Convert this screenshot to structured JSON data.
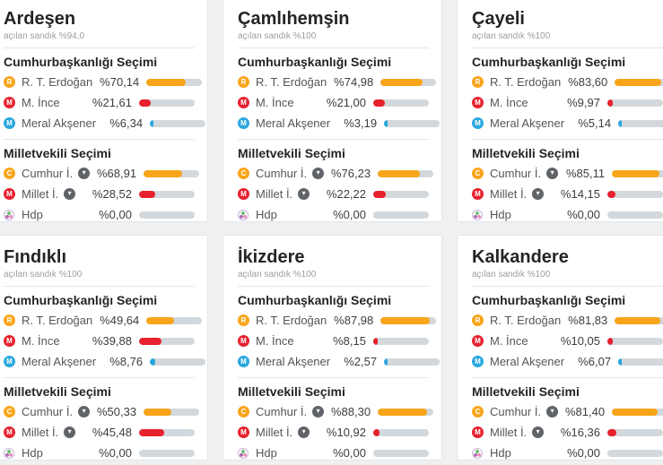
{
  "page": {
    "background": "#eef0f2"
  },
  "colors": {
    "orange": "#f9a51a",
    "red": "#e8212e",
    "blue": "#29a8df",
    "track": "#d2d8dc",
    "chevron_bg": "#606368"
  },
  "icons": {
    "chevron_down": "▾",
    "hdp": "hdp-tree-icon"
  },
  "labels": {
    "presidential": "Cumhurbaşkanlığı Seçimi",
    "parliamentary": "Milletvekili Seçimi"
  },
  "districts": [
    {
      "name": "Ardeşen",
      "ballots": "açılan sandık %94,0",
      "presidential": [
        {
          "name": "R. T. Erdoğan",
          "badge": "R",
          "color": "#f9a51a",
          "value": 70.14,
          "value_label": "%70,14"
        },
        {
          "name": "M. İnce",
          "badge": "M",
          "color": "#e8212e",
          "value": 21.61,
          "value_label": "%21,61"
        },
        {
          "name": "Meral Akşener",
          "badge": "M",
          "color": "#29a8df",
          "value": 6.34,
          "value_label": "%6,34"
        }
      ],
      "parliamentary": [
        {
          "name": "Cumhur İ.",
          "badge": "C",
          "color": "#f9a51a",
          "value": 68.91,
          "value_label": "%68,91",
          "expandable": true
        },
        {
          "name": "Millet İ.",
          "badge": "M",
          "color": "#e8212e",
          "value": 28.52,
          "value_label": "%28,52",
          "expandable": true
        },
        {
          "name": "Hdp",
          "badge": "",
          "hdp_icon": true,
          "color": "#b06ab3",
          "value": 0,
          "value_label": "%0,00"
        }
      ]
    },
    {
      "name": "Çamlıhemşin",
      "ballots": "açılan sandık %100",
      "presidential": [
        {
          "name": "R. T. Erdoğan",
          "badge": "R",
          "color": "#f9a51a",
          "value": 74.98,
          "value_label": "%74,98"
        },
        {
          "name": "M. İnce",
          "badge": "M",
          "color": "#e8212e",
          "value": 21.0,
          "value_label": "%21,00"
        },
        {
          "name": "Meral Akşener",
          "badge": "M",
          "color": "#29a8df",
          "value": 3.19,
          "value_label": "%3,19"
        }
      ],
      "parliamentary": [
        {
          "name": "Cumhur İ.",
          "badge": "C",
          "color": "#f9a51a",
          "value": 76.23,
          "value_label": "%76,23",
          "expandable": true
        },
        {
          "name": "Millet İ.",
          "badge": "M",
          "color": "#e8212e",
          "value": 22.22,
          "value_label": "%22,22",
          "expandable": true
        },
        {
          "name": "Hdp",
          "badge": "",
          "hdp_icon": true,
          "color": "#b06ab3",
          "value": 0,
          "value_label": "%0,00"
        }
      ]
    },
    {
      "name": "Çayeli",
      "ballots": "açılan sandık %100",
      "presidential": [
        {
          "name": "R. T. Erdoğan",
          "badge": "R",
          "color": "#f9a51a",
          "value": 83.6,
          "value_label": "%83,60"
        },
        {
          "name": "M. İnce",
          "badge": "M",
          "color": "#e8212e",
          "value": 9.97,
          "value_label": "%9,97"
        },
        {
          "name": "Meral Akşener",
          "badge": "M",
          "color": "#29a8df",
          "value": 5.14,
          "value_label": "%5,14"
        }
      ],
      "parliamentary": [
        {
          "name": "Cumhur İ.",
          "badge": "C",
          "color": "#f9a51a",
          "value": 85.11,
          "value_label": "%85,11",
          "expandable": true
        },
        {
          "name": "Millet İ.",
          "badge": "M",
          "color": "#e8212e",
          "value": 14.15,
          "value_label": "%14,15",
          "expandable": true
        },
        {
          "name": "Hdp",
          "badge": "",
          "hdp_icon": true,
          "color": "#b06ab3",
          "value": 0,
          "value_label": "%0,00"
        }
      ]
    },
    {
      "name": "Fındıklı",
      "ballots": "açılan sandık %100",
      "presidential": [
        {
          "name": "R. T. Erdoğan",
          "badge": "R",
          "color": "#f9a51a",
          "value": 49.64,
          "value_label": "%49,64"
        },
        {
          "name": "M. İnce",
          "badge": "M",
          "color": "#e8212e",
          "value": 39.88,
          "value_label": "%39,88"
        },
        {
          "name": "Meral Akşener",
          "badge": "M",
          "color": "#29a8df",
          "value": 8.76,
          "value_label": "%8,76"
        }
      ],
      "parliamentary": [
        {
          "name": "Cumhur İ.",
          "badge": "C",
          "color": "#f9a51a",
          "value": 50.33,
          "value_label": "%50,33",
          "expandable": true
        },
        {
          "name": "Millet İ.",
          "badge": "M",
          "color": "#e8212e",
          "value": 45.48,
          "value_label": "%45,48",
          "expandable": true
        },
        {
          "name": "Hdp",
          "badge": "",
          "hdp_icon": true,
          "color": "#b06ab3",
          "value": 0,
          "value_label": "%0,00"
        }
      ]
    },
    {
      "name": "İkizdere",
      "ballots": "açılan sandık %100",
      "presidential": [
        {
          "name": "R. T. Erdoğan",
          "badge": "R",
          "color": "#f9a51a",
          "value": 87.98,
          "value_label": "%87,98"
        },
        {
          "name": "M. İnce",
          "badge": "M",
          "color": "#e8212e",
          "value": 8.15,
          "value_label": "%8,15"
        },
        {
          "name": "Meral Akşener",
          "badge": "M",
          "color": "#29a8df",
          "value": 2.57,
          "value_label": "%2,57"
        }
      ],
      "parliamentary": [
        {
          "name": "Cumhur İ.",
          "badge": "C",
          "color": "#f9a51a",
          "value": 88.3,
          "value_label": "%88,30",
          "expandable": true
        },
        {
          "name": "Millet İ.",
          "badge": "M",
          "color": "#e8212e",
          "value": 10.92,
          "value_label": "%10,92",
          "expandable": true
        },
        {
          "name": "Hdp",
          "badge": "",
          "hdp_icon": true,
          "color": "#b06ab3",
          "value": 0,
          "value_label": "%0,00"
        }
      ]
    },
    {
      "name": "Kalkandere",
      "ballots": "açılan sandık %100",
      "presidential": [
        {
          "name": "R. T. Erdoğan",
          "badge": "R",
          "color": "#f9a51a",
          "value": 81.83,
          "value_label": "%81,83"
        },
        {
          "name": "M. İnce",
          "badge": "M",
          "color": "#e8212e",
          "value": 10.05,
          "value_label": "%10,05"
        },
        {
          "name": "Meral Akşener",
          "badge": "M",
          "color": "#29a8df",
          "value": 6.07,
          "value_label": "%6,07"
        }
      ],
      "parliamentary": [
        {
          "name": "Cumhur İ.",
          "badge": "C",
          "color": "#f9a51a",
          "value": 81.4,
          "value_label": "%81,40",
          "expandable": true
        },
        {
          "name": "Millet İ.",
          "badge": "M",
          "color": "#e8212e",
          "value": 16.36,
          "value_label": "%16,36",
          "expandable": true
        },
        {
          "name": "Hdp",
          "badge": "",
          "hdp_icon": true,
          "color": "#b06ab3",
          "value": 0,
          "value_label": "%0,00"
        }
      ]
    }
  ]
}
